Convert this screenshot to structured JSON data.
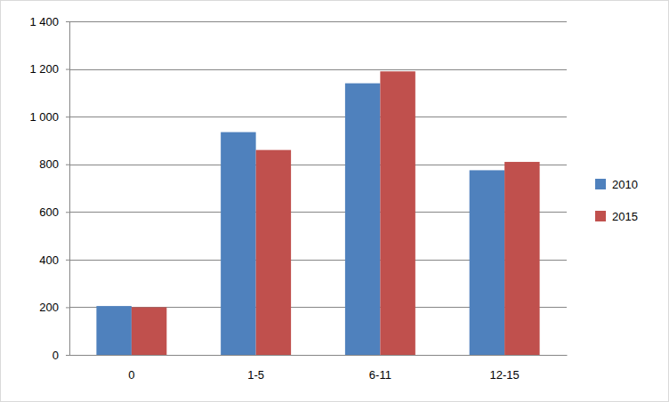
{
  "chart_data": {
    "type": "bar",
    "categories": [
      "0",
      "1-5",
      "6-11",
      "12-15"
    ],
    "series": [
      {
        "name": "2010",
        "color": "#4f81bd",
        "values": [
          205,
          935,
          1140,
          775
        ]
      },
      {
        "name": "2015",
        "color": "#c0504d",
        "values": [
          200,
          860,
          1190,
          810
        ]
      }
    ],
    "ylim": [
      0,
      1400
    ],
    "yticks": [
      0,
      200,
      400,
      600,
      800,
      {
        "value": 1000,
        "label": "1 000"
      },
      {
        "value": 1200,
        "label": "1 200"
      },
      {
        "value": 1400,
        "label": "1 400"
      }
    ],
    "grid": true,
    "legend": "right"
  }
}
